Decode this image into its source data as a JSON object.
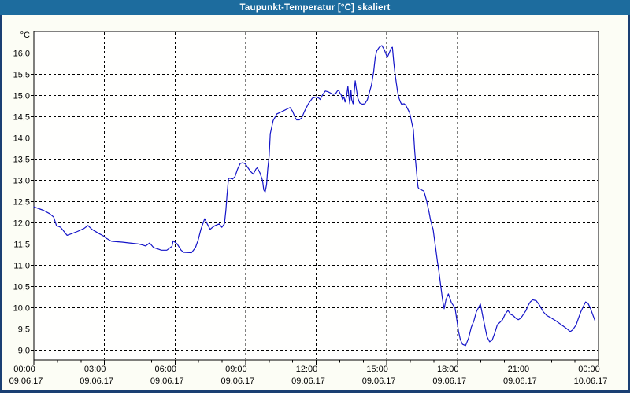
{
  "window": {
    "title": "Taupunkt-Temperatur [°C] skaliert"
  },
  "colors": {
    "titlebar_bg": "#1d6c9e",
    "titlebar_text": "#ffffff",
    "window_border": "#1a3f73",
    "surface_bg": "#fcfdf5",
    "plot_bg": "#fffffe",
    "plot_border": "#000000",
    "grid": "#000000",
    "axis_text": "#000000",
    "line": "#1414c8"
  },
  "chart_data": {
    "type": "line",
    "title": "Taupunkt-Temperatur [°C] skaliert",
    "ylabel": "°C",
    "grid": "dashed",
    "legend": "none",
    "ylim": [
      8.77,
      16.52
    ],
    "xlim_hours": [
      0,
      24
    ],
    "minor_x_tick_every_hours": 1,
    "y_ticks": [
      {
        "label": "16,0",
        "value": 16.0
      },
      {
        "label": "15,5",
        "value": 15.5
      },
      {
        "label": "15,0",
        "value": 15.0
      },
      {
        "label": "14,5",
        "value": 14.5
      },
      {
        "label": "14,0",
        "value": 14.0
      },
      {
        "label": "13,5",
        "value": 13.5
      },
      {
        "label": "13,0",
        "value": 13.0
      },
      {
        "label": "12,5",
        "value": 12.5
      },
      {
        "label": "12,0",
        "value": 12.0
      },
      {
        "label": "11,5",
        "value": 11.5
      },
      {
        "label": "11,0",
        "value": 11.0
      },
      {
        "label": "10,5",
        "value": 10.5
      },
      {
        "label": "10,0",
        "value": 10.0
      },
      {
        "label": "9,5",
        "value": 9.5
      },
      {
        "label": "9,0",
        "value": 9.0
      }
    ],
    "x_ticks": [
      {
        "hour": 0,
        "time": "00:00",
        "date": "09.06.17"
      },
      {
        "hour": 3,
        "time": "03:00",
        "date": "09.06.17"
      },
      {
        "hour": 6,
        "time": "06:00",
        "date": "09.06.17"
      },
      {
        "hour": 9,
        "time": "09:00",
        "date": "09.06.17"
      },
      {
        "hour": 12,
        "time": "12:00",
        "date": "09.06.17"
      },
      {
        "hour": 15,
        "time": "15:00",
        "date": "09.06.17"
      },
      {
        "hour": 18,
        "time": "18:00",
        "date": "09.06.17"
      },
      {
        "hour": 21,
        "time": "21:00",
        "date": "09.06.17"
      },
      {
        "hour": 24,
        "time": "00:00",
        "date": "10.06.17"
      }
    ],
    "series": [
      {
        "name": "Taupunkt-Temperatur",
        "color": "#1414c8",
        "points": [
          [
            0.0,
            12.38
          ],
          [
            0.4,
            12.3
          ],
          [
            0.67,
            12.22
          ],
          [
            0.84,
            12.14
          ],
          [
            0.96,
            11.94
          ],
          [
            1.13,
            11.9
          ],
          [
            1.24,
            11.83
          ],
          [
            1.41,
            11.71
          ],
          [
            1.57,
            11.74
          ],
          [
            1.85,
            11.8
          ],
          [
            2.13,
            11.87
          ],
          [
            2.3,
            11.94
          ],
          [
            2.47,
            11.85
          ],
          [
            2.74,
            11.76
          ],
          [
            2.97,
            11.69
          ],
          [
            3.08,
            11.64
          ],
          [
            3.3,
            11.57
          ],
          [
            3.53,
            11.56
          ],
          [
            3.75,
            11.55
          ],
          [
            4.08,
            11.53
          ],
          [
            4.42,
            11.51
          ],
          [
            4.64,
            11.48
          ],
          [
            4.75,
            11.46
          ],
          [
            4.92,
            11.53
          ],
          [
            5.09,
            11.42
          ],
          [
            5.26,
            11.39
          ],
          [
            5.42,
            11.36
          ],
          [
            5.65,
            11.36
          ],
          [
            5.87,
            11.45
          ],
          [
            5.92,
            11.58
          ],
          [
            6.09,
            11.51
          ],
          [
            6.26,
            11.36
          ],
          [
            6.37,
            11.31
          ],
          [
            6.7,
            11.3
          ],
          [
            6.87,
            11.42
          ],
          [
            6.99,
            11.61
          ],
          [
            7.1,
            11.85
          ],
          [
            7.2,
            12.01
          ],
          [
            7.26,
            12.1
          ],
          [
            7.37,
            11.98
          ],
          [
            7.49,
            11.85
          ],
          [
            7.6,
            11.9
          ],
          [
            7.71,
            11.94
          ],
          [
            7.88,
            11.98
          ],
          [
            7.99,
            11.9
          ],
          [
            8.1,
            11.98
          ],
          [
            8.16,
            12.29
          ],
          [
            8.21,
            12.66
          ],
          [
            8.27,
            13.03
          ],
          [
            8.32,
            13.06
          ],
          [
            8.44,
            13.03
          ],
          [
            8.55,
            13.09
          ],
          [
            8.66,
            13.27
          ],
          [
            8.77,
            13.4
          ],
          [
            8.88,
            13.42
          ],
          [
            8.99,
            13.39
          ],
          [
            9.1,
            13.3
          ],
          [
            9.22,
            13.21
          ],
          [
            9.33,
            13.15
          ],
          [
            9.44,
            13.27
          ],
          [
            9.5,
            13.3
          ],
          [
            9.61,
            13.18
          ],
          [
            9.72,
            13.0
          ],
          [
            9.77,
            12.78
          ],
          [
            9.83,
            12.73
          ],
          [
            9.89,
            12.9
          ],
          [
            9.94,
            13.27
          ],
          [
            10.0,
            13.58
          ],
          [
            10.05,
            14.1
          ],
          [
            10.17,
            14.41
          ],
          [
            10.33,
            14.57
          ],
          [
            10.56,
            14.63
          ],
          [
            10.78,
            14.69
          ],
          [
            10.89,
            14.72
          ],
          [
            11.0,
            14.63
          ],
          [
            11.11,
            14.48
          ],
          [
            11.17,
            14.43
          ],
          [
            11.28,
            14.43
          ],
          [
            11.39,
            14.48
          ],
          [
            11.5,
            14.63
          ],
          [
            11.67,
            14.81
          ],
          [
            11.84,
            14.94
          ],
          [
            12.0,
            14.97
          ],
          [
            12.12,
            14.94
          ],
          [
            12.17,
            14.91
          ],
          [
            12.28,
            15.03
          ],
          [
            12.39,
            15.11
          ],
          [
            12.51,
            15.09
          ],
          [
            12.62,
            15.06
          ],
          [
            12.73,
            15.03
          ],
          [
            12.84,
            15.06
          ],
          [
            12.9,
            15.11
          ],
          [
            12.95,
            15.13
          ],
          [
            13.01,
            15.06
          ],
          [
            13.06,
            15.02
          ],
          [
            13.12,
            14.91
          ],
          [
            13.18,
            14.97
          ],
          [
            13.23,
            14.85
          ],
          [
            13.29,
            14.97
          ],
          [
            13.35,
            15.22
          ],
          [
            13.4,
            14.94
          ],
          [
            13.43,
            14.81
          ],
          [
            13.48,
            15.13
          ],
          [
            13.51,
            14.91
          ],
          [
            13.57,
            14.81
          ],
          [
            13.66,
            15.35
          ],
          [
            13.7,
            15.19
          ],
          [
            13.77,
            14.94
          ],
          [
            13.85,
            14.83
          ],
          [
            13.96,
            14.8
          ],
          [
            14.07,
            14.81
          ],
          [
            14.18,
            14.91
          ],
          [
            14.29,
            15.13
          ],
          [
            14.35,
            15.25
          ],
          [
            14.44,
            15.55
          ],
          [
            14.51,
            15.9
          ],
          [
            14.57,
            16.05
          ],
          [
            14.68,
            16.14
          ],
          [
            14.79,
            16.18
          ],
          [
            14.9,
            16.08
          ],
          [
            14.96,
            15.99
          ],
          [
            15.02,
            15.9
          ],
          [
            15.07,
            15.96
          ],
          [
            15.19,
            16.12
          ],
          [
            15.24,
            16.14
          ],
          [
            15.3,
            15.77
          ],
          [
            15.35,
            15.52
          ],
          [
            15.41,
            15.28
          ],
          [
            15.46,
            15.09
          ],
          [
            15.52,
            14.94
          ],
          [
            15.58,
            14.85
          ],
          [
            15.63,
            14.8
          ],
          [
            15.74,
            14.81
          ],
          [
            15.8,
            14.78
          ],
          [
            15.86,
            14.72
          ],
          [
            15.97,
            14.6
          ],
          [
            16.02,
            14.48
          ],
          [
            16.08,
            14.32
          ],
          [
            16.13,
            14.2
          ],
          [
            16.19,
            13.67
          ],
          [
            16.25,
            13.3
          ],
          [
            16.3,
            12.99
          ],
          [
            16.33,
            12.84
          ],
          [
            16.36,
            12.81
          ],
          [
            16.47,
            12.78
          ],
          [
            16.58,
            12.75
          ],
          [
            16.64,
            12.63
          ],
          [
            16.69,
            12.53
          ],
          [
            16.75,
            12.38
          ],
          [
            16.8,
            12.25
          ],
          [
            16.86,
            12.07
          ],
          [
            16.92,
            11.94
          ],
          [
            16.97,
            11.85
          ],
          [
            17.03,
            11.6
          ],
          [
            17.08,
            11.4
          ],
          [
            17.15,
            11.1
          ],
          [
            17.22,
            10.85
          ],
          [
            17.3,
            10.5
          ],
          [
            17.37,
            10.2
          ],
          [
            17.44,
            9.98
          ],
          [
            17.52,
            10.2
          ],
          [
            17.62,
            10.33
          ],
          [
            17.75,
            10.12
          ],
          [
            17.9,
            10.0
          ],
          [
            17.98,
            9.7
          ],
          [
            18.05,
            9.45
          ],
          [
            18.13,
            9.25
          ],
          [
            18.22,
            9.14
          ],
          [
            18.35,
            9.11
          ],
          [
            18.48,
            9.29
          ],
          [
            18.59,
            9.54
          ],
          [
            18.7,
            9.69
          ],
          [
            18.81,
            9.91
          ],
          [
            18.98,
            10.09
          ],
          [
            19.09,
            9.78
          ],
          [
            19.2,
            9.48
          ],
          [
            19.26,
            9.32
          ],
          [
            19.37,
            9.2
          ],
          [
            19.48,
            9.24
          ],
          [
            19.59,
            9.41
          ],
          [
            19.7,
            9.6
          ],
          [
            19.81,
            9.66
          ],
          [
            19.92,
            9.72
          ],
          [
            20.03,
            9.85
          ],
          [
            20.15,
            9.94
          ],
          [
            20.26,
            9.85
          ],
          [
            20.37,
            9.82
          ],
          [
            20.48,
            9.76
          ],
          [
            20.59,
            9.72
          ],
          [
            20.7,
            9.76
          ],
          [
            20.81,
            9.85
          ],
          [
            20.92,
            9.94
          ],
          [
            21.0,
            10.05
          ],
          [
            21.1,
            10.14
          ],
          [
            21.2,
            10.19
          ],
          [
            21.35,
            10.17
          ],
          [
            21.5,
            10.06
          ],
          [
            21.65,
            9.91
          ],
          [
            21.8,
            9.82
          ],
          [
            22.0,
            9.76
          ],
          [
            22.2,
            9.69
          ],
          [
            22.35,
            9.63
          ],
          [
            22.5,
            9.57
          ],
          [
            22.65,
            9.51
          ],
          [
            22.8,
            9.44
          ],
          [
            22.9,
            9.48
          ],
          [
            23.05,
            9.6
          ],
          [
            23.15,
            9.76
          ],
          [
            23.25,
            9.91
          ],
          [
            23.35,
            10.03
          ],
          [
            23.45,
            10.14
          ],
          [
            23.55,
            10.11
          ],
          [
            23.65,
            10.0
          ],
          [
            23.75,
            9.85
          ],
          [
            23.85,
            9.7
          ]
        ]
      }
    ]
  }
}
